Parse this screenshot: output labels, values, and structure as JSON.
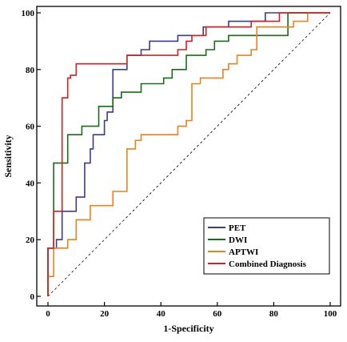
{
  "chart_data": {
    "type": "line",
    "title": "",
    "xlabel": "1-Specificity",
    "ylabel": "Sensitivity",
    "xlim": [
      0,
      100
    ],
    "ylim": [
      0,
      100
    ],
    "xticks": [
      "0",
      "20",
      "40",
      "60",
      "80",
      "100"
    ],
    "yticks": [
      "0",
      "20",
      "40",
      "60",
      "80",
      "100"
    ],
    "grid": false,
    "legend": "bottom-right",
    "reference_line": "diagonal dashed",
    "series": [
      {
        "name": "PET",
        "color": "#3b3b8f",
        "points": [
          [
            0,
            0
          ],
          [
            0,
            17
          ],
          [
            3,
            17
          ],
          [
            3,
            20
          ],
          [
            5,
            20
          ],
          [
            5,
            30
          ],
          [
            10,
            30
          ],
          [
            10,
            35
          ],
          [
            13,
            35
          ],
          [
            13,
            47
          ],
          [
            15,
            47
          ],
          [
            15,
            52
          ],
          [
            16,
            52
          ],
          [
            16,
            57
          ],
          [
            20,
            57
          ],
          [
            20,
            62
          ],
          [
            21,
            62
          ],
          [
            21,
            65
          ],
          [
            23,
            65
          ],
          [
            23,
            80
          ],
          [
            28,
            80
          ],
          [
            28,
            85
          ],
          [
            33,
            85
          ],
          [
            33,
            87
          ],
          [
            36,
            87
          ],
          [
            36,
            90
          ],
          [
            46,
            90
          ],
          [
            46,
            92
          ],
          [
            55,
            92
          ],
          [
            55,
            95
          ],
          [
            64,
            95
          ],
          [
            64,
            97
          ],
          [
            77,
            97
          ],
          [
            77,
            100
          ],
          [
            100,
            100
          ]
        ]
      },
      {
        "name": "DWI",
        "color": "#1a6b1a",
        "points": [
          [
            0,
            0
          ],
          [
            0,
            17
          ],
          [
            2,
            17
          ],
          [
            2,
            47
          ],
          [
            7,
            47
          ],
          [
            7,
            57
          ],
          [
            12,
            57
          ],
          [
            12,
            60
          ],
          [
            18,
            60
          ],
          [
            18,
            67
          ],
          [
            23,
            67
          ],
          [
            23,
            70
          ],
          [
            26,
            70
          ],
          [
            26,
            72
          ],
          [
            33,
            72
          ],
          [
            33,
            75
          ],
          [
            41,
            75
          ],
          [
            41,
            77
          ],
          [
            44,
            77
          ],
          [
            44,
            80
          ],
          [
            49,
            80
          ],
          [
            49,
            85
          ],
          [
            56,
            85
          ],
          [
            56,
            87
          ],
          [
            59,
            87
          ],
          [
            59,
            90
          ],
          [
            64,
            90
          ],
          [
            64,
            92
          ],
          [
            85,
            92
          ],
          [
            85,
            100
          ],
          [
            100,
            100
          ]
        ]
      },
      {
        "name": "APTWI",
        "color": "#e8821e",
        "points": [
          [
            0,
            0
          ],
          [
            0,
            7
          ],
          [
            2,
            7
          ],
          [
            2,
            17
          ],
          [
            7,
            17
          ],
          [
            7,
            20
          ],
          [
            10,
            20
          ],
          [
            10,
            27
          ],
          [
            15,
            27
          ],
          [
            15,
            32
          ],
          [
            23,
            32
          ],
          [
            23,
            37
          ],
          [
            28,
            37
          ],
          [
            28,
            52
          ],
          [
            31,
            52
          ],
          [
            31,
            55
          ],
          [
            33,
            55
          ],
          [
            33,
            57
          ],
          [
            46,
            57
          ],
          [
            46,
            60
          ],
          [
            49,
            60
          ],
          [
            49,
            62
          ],
          [
            51,
            62
          ],
          [
            51,
            75
          ],
          [
            54,
            75
          ],
          [
            54,
            77
          ],
          [
            62,
            77
          ],
          [
            62,
            80
          ],
          [
            64,
            80
          ],
          [
            64,
            82
          ],
          [
            67,
            82
          ],
          [
            67,
            85
          ],
          [
            72,
            85
          ],
          [
            72,
            87
          ],
          [
            74,
            87
          ],
          [
            74,
            95
          ],
          [
            87,
            95
          ],
          [
            87,
            97
          ],
          [
            92,
            97
          ],
          [
            92,
            100
          ],
          [
            100,
            100
          ]
        ]
      },
      {
        "name": "Combined Diagnosis",
        "color": "#d42020",
        "points": [
          [
            0,
            0
          ],
          [
            0,
            17
          ],
          [
            2,
            17
          ],
          [
            2,
            30
          ],
          [
            5,
            30
          ],
          [
            5,
            70
          ],
          [
            7,
            70
          ],
          [
            7,
            77
          ],
          [
            8,
            77
          ],
          [
            8,
            78
          ],
          [
            10,
            78
          ],
          [
            10,
            82
          ],
          [
            28,
            82
          ],
          [
            28,
            85
          ],
          [
            46,
            85
          ],
          [
            46,
            87
          ],
          [
            49,
            87
          ],
          [
            49,
            90
          ],
          [
            51,
            90
          ],
          [
            51,
            92
          ],
          [
            56,
            92
          ],
          [
            56,
            95
          ],
          [
            72,
            95
          ],
          [
            72,
            97
          ],
          [
            82,
            97
          ],
          [
            82,
            100
          ],
          [
            100,
            100
          ]
        ]
      }
    ]
  }
}
